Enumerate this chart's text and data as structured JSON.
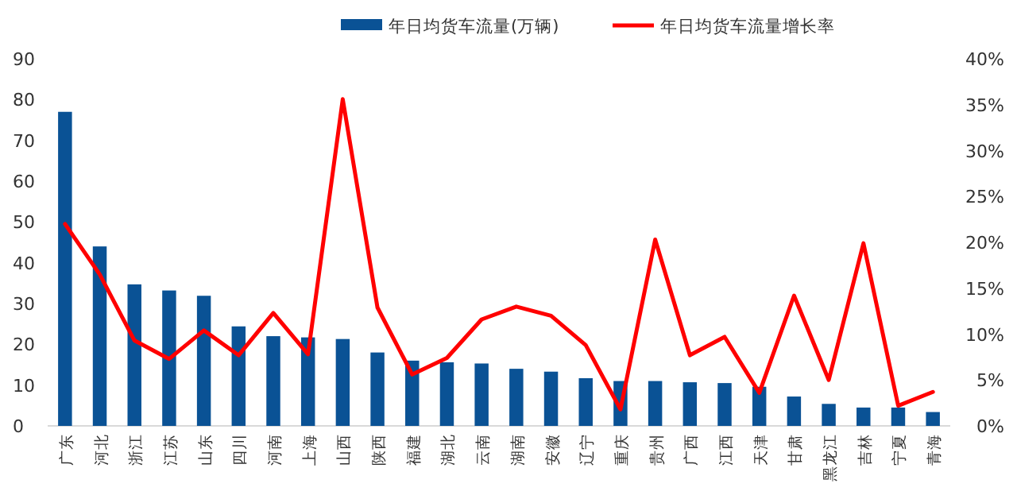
{
  "chart_data": {
    "type": "bar",
    "categories": [
      "广东",
      "河北",
      "浙江",
      "江苏",
      "山东",
      "四川",
      "河南",
      "上海",
      "山西",
      "陕西",
      "福建",
      "湖北",
      "云南",
      "湖南",
      "安徽",
      "辽宁",
      "重庆",
      "贵州",
      "广西",
      "江西",
      "天津",
      "甘肃",
      "黑龙江",
      "吉林",
      "宁夏",
      "青海"
    ],
    "series": [
      {
        "name": "年日均货车流量(万辆)",
        "color": "#0a5295",
        "values": [
          77,
          44,
          34.7,
          33.2,
          31.9,
          24.4,
          22,
          21.7,
          21.3,
          18,
          16,
          15.6,
          15.3,
          14,
          13.3,
          11.7,
          11,
          11,
          10.7,
          10.5,
          9.6,
          7.2,
          5.4,
          4.5,
          4.5,
          3.4
        ]
      },
      {
        "name": "年日均货车流量增长率",
        "type": "line",
        "axis": "y2",
        "color": "#ff0000",
        "values": [
          22,
          16.5,
          9.3,
          7.3,
          10.4,
          7.7,
          12.3,
          7.8,
          35.6,
          12.9,
          5.6,
          7.4,
          11.6,
          13,
          12,
          8.8,
          1.8,
          20.3,
          7.7,
          9.7,
          3.6,
          14.2,
          5,
          19.9,
          2.2,
          3.7
        ]
      }
    ],
    "ylim": [
      0,
      90
    ],
    "yticks": [
      0,
      10,
      20,
      30,
      40,
      50,
      60,
      70,
      80,
      90
    ],
    "y2lim": [
      0,
      40
    ],
    "y2ticks": [
      {
        "value": 0,
        "label": "0%"
      },
      {
        "value": 5,
        "label": "5%"
      },
      {
        "value": 10,
        "label": "10%"
      },
      {
        "value": 15,
        "label": "15%"
      },
      {
        "value": 20,
        "label": "20%"
      },
      {
        "value": 25,
        "label": "25%"
      },
      {
        "value": 30,
        "label": "30%"
      },
      {
        "value": 35,
        "label": "35%"
      },
      {
        "value": 40,
        "label": "40%"
      }
    ],
    "legend": "top",
    "grid": false,
    "marker": "none",
    "line_style": "solid"
  }
}
